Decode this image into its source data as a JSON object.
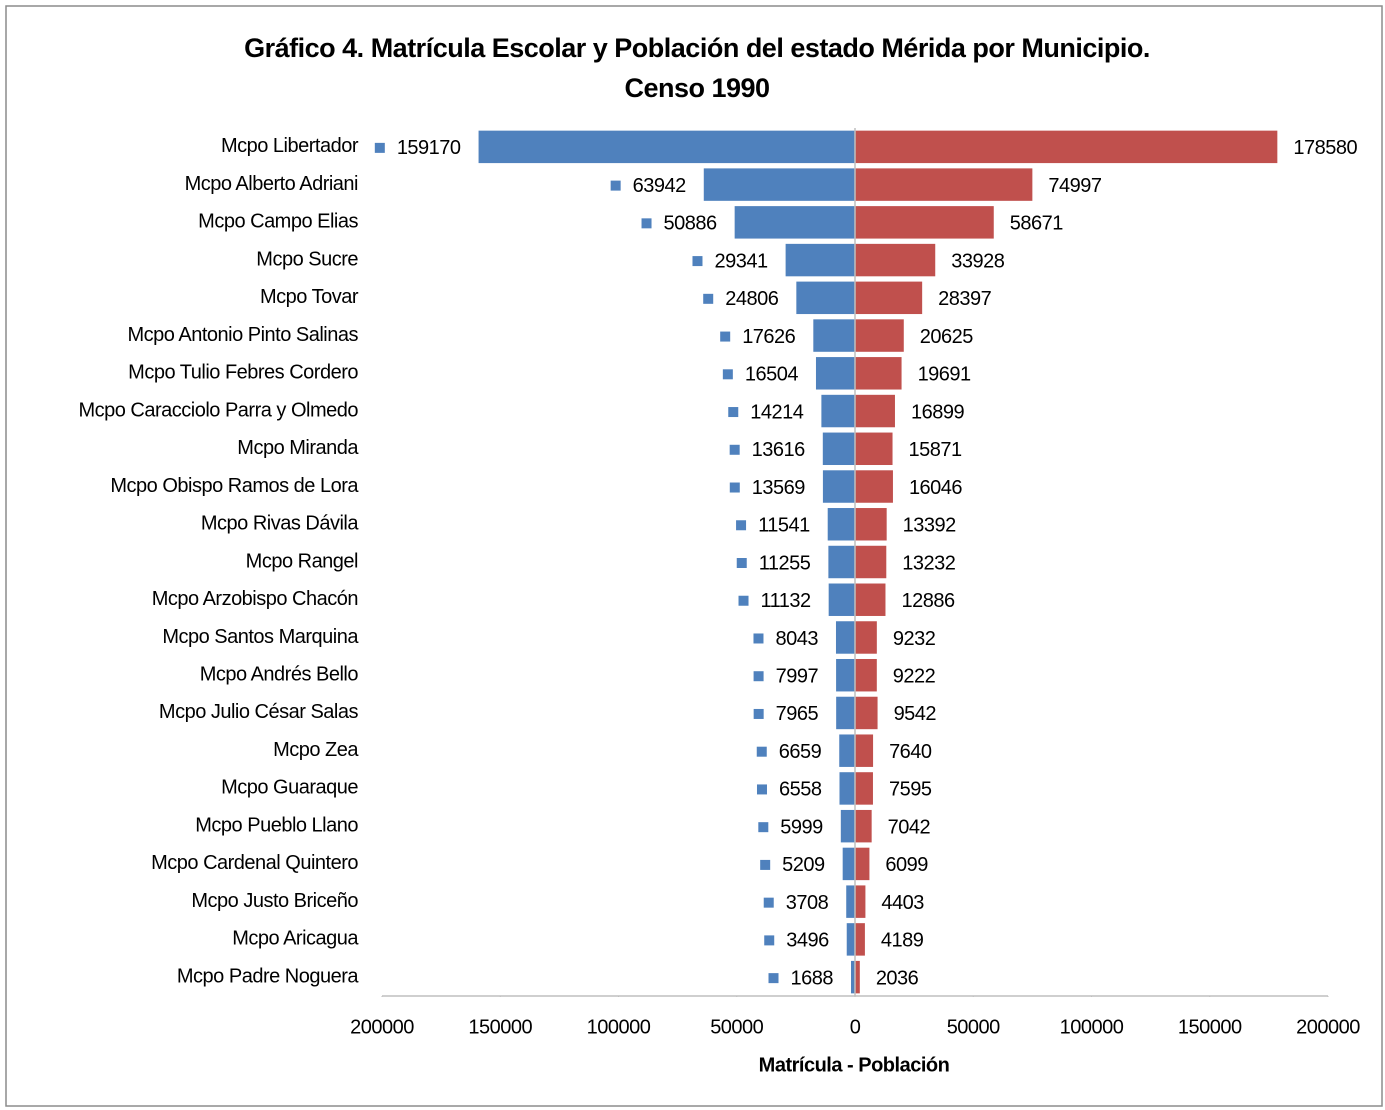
{
  "chart_data": {
    "type": "bar",
    "horizontal": true,
    "title": [
      "Gráfico 4. Matrícula Escolar y Población del estado Mérida por Municipio.",
      "Censo 1990"
    ],
    "xlabel": "Matrícula - Población",
    "categories": [
      "Mcpo Libertador",
      "Mcpo Alberto Adriani",
      "Mcpo Campo Elias",
      "Mcpo Sucre",
      "Mcpo Tovar",
      "Mcpo Antonio Pinto Salinas",
      "Mcpo Tulio Febres Cordero",
      "Mcpo Caracciolo Parra y Olmedo",
      "Mcpo Miranda",
      "Mcpo Obispo Ramos de Lora",
      "Mcpo Rivas Dávila",
      "Mcpo Rangel",
      "Mcpo Arzobispo Chacón",
      "Mcpo Santos Marquina",
      "Mcpo Andrés Bello",
      "Mcpo Julio César Salas",
      "Mcpo Zea",
      "Mcpo Guaraque",
      "Mcpo Pueblo Llano",
      "Mcpo Cardenal Quintero",
      "Mcpo Justo Briceño",
      "Mcpo Aricagua",
      "Mcpo Padre Noguera"
    ],
    "series": [
      {
        "color": "#4f81bd",
        "values": [
          -159170,
          -63942,
          -50886,
          -29341,
          -24806,
          -17626,
          -16504,
          -14214,
          -13616,
          -13569,
          -11541,
          -11255,
          -11132,
          -8043,
          -7997,
          -7965,
          -6659,
          -6558,
          -5999,
          -5209,
          -3708,
          -3496,
          -1688
        ],
        "value_labels": [
          "159170",
          "63942",
          "50886",
          "29341",
          "24806",
          "17626",
          "16504",
          "14214",
          "13616",
          "13569",
          "11541",
          "11255",
          "11132",
          "8043",
          "7997",
          "7965",
          "6659",
          "6558",
          "5999",
          "5209",
          "3708",
          "3496",
          "1688"
        ]
      },
      {
        "color": "#c0504d",
        "values": [
          178580,
          74997,
          58671,
          33928,
          28397,
          20625,
          19691,
          16899,
          15871,
          16046,
          13392,
          13232,
          12886,
          9232,
          9222,
          9542,
          7640,
          7595,
          7042,
          6099,
          4403,
          4189,
          2036
        ]
      }
    ],
    "xlim": [
      -200000,
      200000
    ],
    "xticks": [
      {
        "value": -200000,
        "label": "200000"
      },
      {
        "value": -150000,
        "label": "150000"
      },
      {
        "value": -100000,
        "label": "100000"
      },
      {
        "value": -50000,
        "label": "50000"
      },
      0,
      50000,
      100000,
      150000,
      200000
    ]
  }
}
